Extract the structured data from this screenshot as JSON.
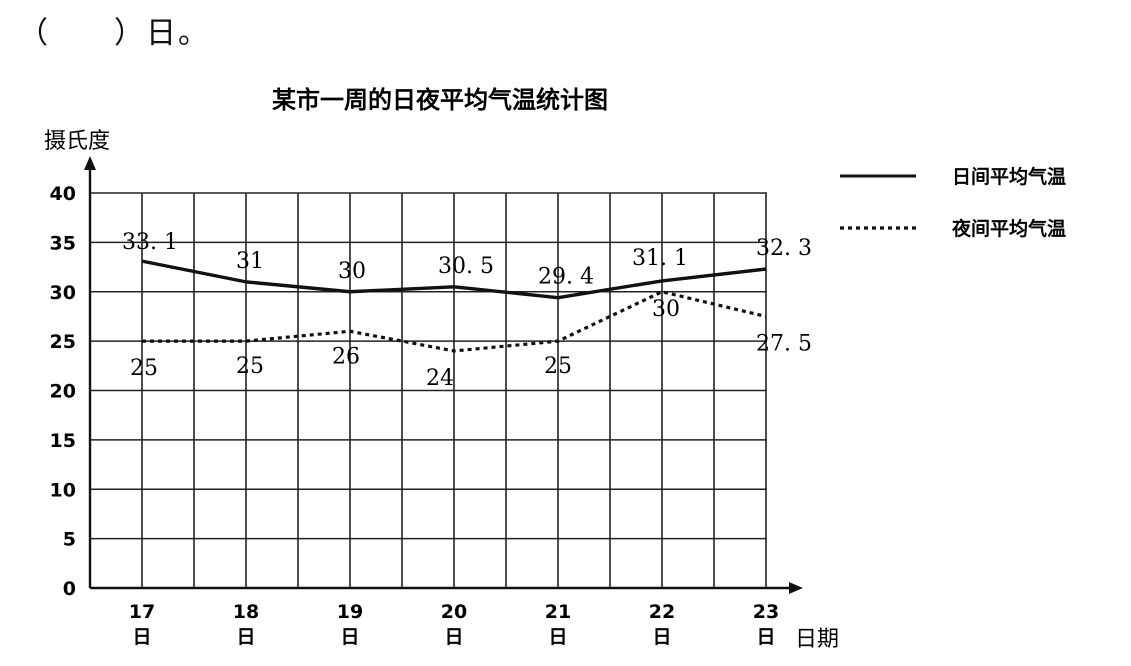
{
  "question": {
    "text": "（　　）日。"
  },
  "chart_data": {
    "type": "line",
    "title": "某市一周的日夜平均气温统计图",
    "ylabel": "摄氏度",
    "xlabel": "日期",
    "categories": [
      "17",
      "18",
      "19",
      "20",
      "21",
      "22",
      "23"
    ],
    "category_unit": "日",
    "ylim": [
      0,
      40
    ],
    "yticks": [
      0,
      5,
      10,
      15,
      20,
      25,
      30,
      35,
      40
    ],
    "grid": true,
    "legend_position": "top-right",
    "series": [
      {
        "name": "日间平均气温",
        "style": "solid",
        "color": "#111111",
        "values": [
          33.1,
          31,
          30,
          30.5,
          29.4,
          31.1,
          32.3
        ],
        "labels": [
          "33. 1",
          "31",
          "30",
          "30. 5",
          "29. 4",
          "31. 1",
          "32. 3"
        ]
      },
      {
        "name": "夜间平均气温",
        "style": "dotted",
        "color": "#111111",
        "values": [
          25,
          25,
          26,
          24,
          25,
          30,
          27.5
        ],
        "labels": [
          "25",
          "25",
          "26",
          "24",
          "25",
          "30",
          "27. 5"
        ]
      }
    ]
  }
}
